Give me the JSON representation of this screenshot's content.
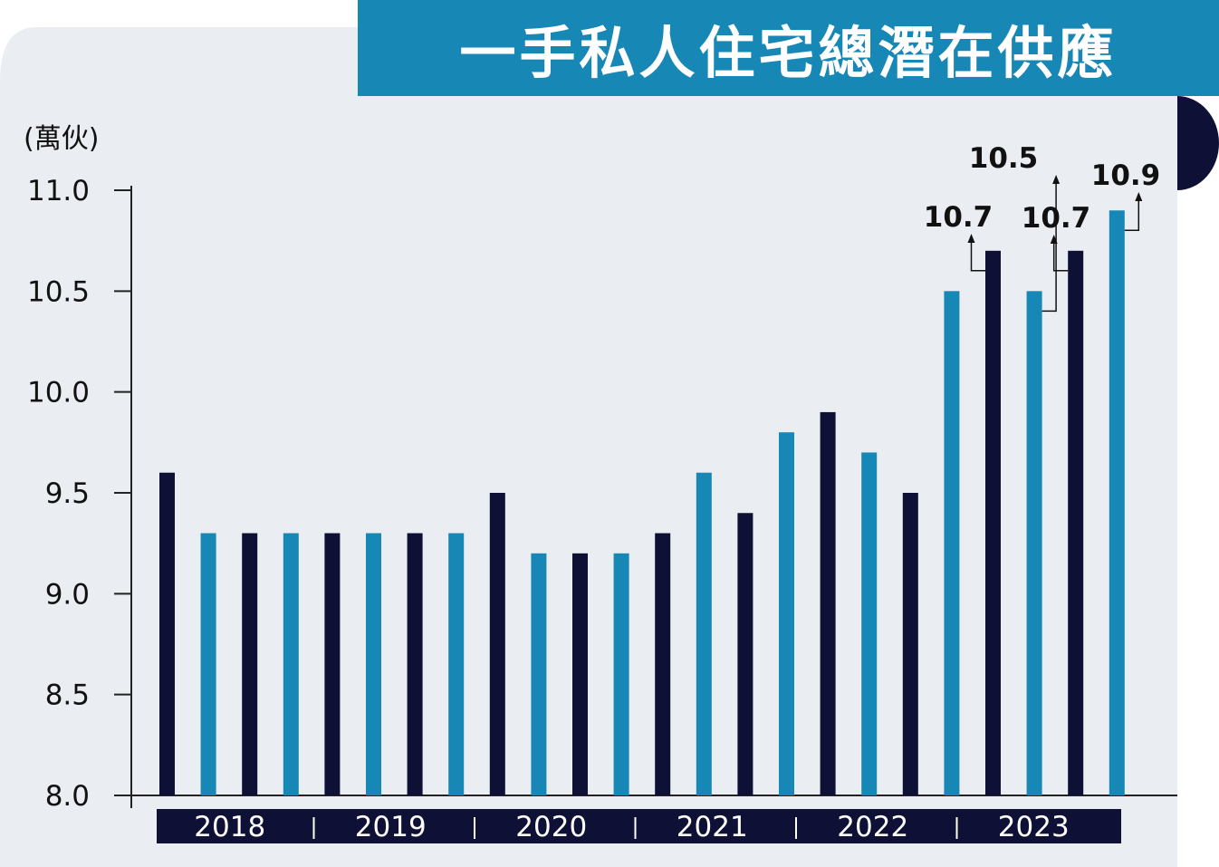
{
  "title": "一手私人住宅總潛在供應",
  "unit": "(萬伙)",
  "colors": {
    "dark": "#0f1035",
    "blue": "#1787b5",
    "background_panel": "#eaeef2",
    "axis": "#222222"
  },
  "chart_data": {
    "type": "bar",
    "title": "一手私人住宅總潛在供應",
    "ylabel": "(萬伙)",
    "xlabel": "",
    "ylim": [
      8.0,
      11.0
    ],
    "yticks": [
      "8.0",
      "8.5",
      "9.0",
      "9.5",
      "10.0",
      "10.5",
      "11.0"
    ],
    "year_labels": [
      "2018",
      "2019",
      "2020",
      "2021",
      "2022",
      "2023"
    ],
    "bars_per_year": 4,
    "values": [
      9.6,
      9.3,
      9.3,
      9.3,
      9.3,
      9.3,
      9.3,
      9.3,
      9.5,
      9.2,
      9.2,
      9.2,
      9.3,
      9.6,
      9.4,
      9.8,
      9.9,
      9.7,
      9.5,
      10.5,
      10.7,
      10.5,
      10.7,
      10.9
    ],
    "bar_colors": [
      "dark",
      "blue",
      "dark",
      "blue",
      "dark",
      "blue",
      "dark",
      "blue",
      "dark",
      "blue",
      "dark",
      "blue",
      "dark",
      "blue",
      "dark",
      "blue",
      "dark",
      "blue",
      "dark",
      "blue",
      "dark",
      "blue",
      "dark",
      "blue"
    ],
    "annotations": [
      {
        "bar_index": 20,
        "text": "10.7"
      },
      {
        "bar_index": 21,
        "text": "10.5"
      },
      {
        "bar_index": 22,
        "text": "10.7"
      },
      {
        "bar_index": 23,
        "text": "10.9"
      }
    ],
    "grid": false,
    "legend": "none"
  }
}
